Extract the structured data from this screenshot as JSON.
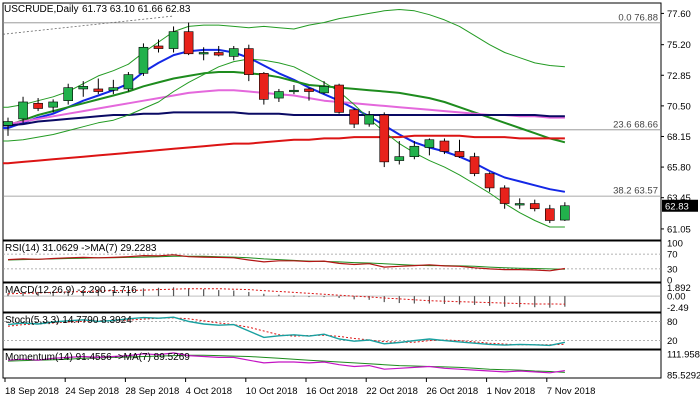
{
  "header": {
    "symbol": "USCRUDE,Daily",
    "ohlc": "61.73 63.10 61.66 62.83"
  },
  "colors": {
    "bull": "#22b14c",
    "bear": "#e8221b",
    "frame": "#000000",
    "ema_blue": "#1428e6",
    "sma_green": "#1e8c1e",
    "sma_pink": "#e468dc",
    "sma_navy": "#0a0a64",
    "sma_red": "#dc1414",
    "bb": "#239b23",
    "fib": "#8c8c8c",
    "price_tag_bg": "#000000"
  },
  "price_tag": "62.83",
  "fib_labels": [
    "0.0 76.88",
    "23.6 68.66",
    "38.2 63.57"
  ],
  "indicator_titles": {
    "rsi": "RSI(14) 31.0629  ->MA(7) 29.2283",
    "macd": "MACD(12,26,9) -2.290  -1.716",
    "stoch": "Stoch(5,3,3) 14.7790 8.3924",
    "mom": "Momentum(14) 91.4556  ->MA(7) 89.5269"
  },
  "indicator_ticks": {
    "rsi": [
      "100",
      "70",
      "30",
      "0"
    ],
    "macd": [
      "1.892",
      "0.00",
      "-2.49"
    ],
    "stoch": [
      "80",
      "20"
    ],
    "mom": [
      "111.9587",
      "85.5292"
    ]
  },
  "chart_data": {
    "type": "candlestick",
    "x_tick_labels": [
      "18 Sep 2018",
      "24 Sep 2018",
      "28 Sep 2018",
      "4 Oct 2018",
      "10 Oct 2018",
      "16 Oct 2018",
      "22 Oct 2018",
      "26 Oct 2018",
      "1 Nov 2018",
      "7 Nov 2018"
    ],
    "y_tick_labels": [
      "77.60",
      "75.20",
      "72.85",
      "70.50",
      "68.15",
      "65.80",
      "63.45",
      "61.05"
    ],
    "ylim": [
      60.2,
      78.4
    ],
    "candles": [
      {
        "o": 69.0,
        "h": 69.6,
        "l": 68.2,
        "c": 69.3
      },
      {
        "o": 69.5,
        "h": 71.2,
        "l": 69.2,
        "c": 70.8
      },
      {
        "o": 70.7,
        "h": 71.1,
        "l": 70.1,
        "c": 70.3
      },
      {
        "o": 70.4,
        "h": 71.0,
        "l": 70.0,
        "c": 70.8
      },
      {
        "o": 70.9,
        "h": 72.2,
        "l": 70.6,
        "c": 71.9
      },
      {
        "o": 71.8,
        "h": 72.4,
        "l": 71.2,
        "c": 72.0
      },
      {
        "o": 71.8,
        "h": 72.6,
        "l": 71.4,
        "c": 71.6
      },
      {
        "o": 71.7,
        "h": 72.5,
        "l": 71.4,
        "c": 71.9
      },
      {
        "o": 71.8,
        "h": 73.1,
        "l": 71.6,
        "c": 72.9
      },
      {
        "o": 73.0,
        "h": 75.3,
        "l": 72.8,
        "c": 75.0
      },
      {
        "o": 75.1,
        "h": 75.6,
        "l": 74.6,
        "c": 74.9
      },
      {
        "o": 74.9,
        "h": 76.6,
        "l": 74.6,
        "c": 76.2
      },
      {
        "o": 76.2,
        "h": 76.9,
        "l": 74.4,
        "c": 74.5
      },
      {
        "o": 74.5,
        "h": 75.0,
        "l": 74.0,
        "c": 74.6
      },
      {
        "o": 74.6,
        "h": 75.1,
        "l": 74.3,
        "c": 74.4
      },
      {
        "o": 74.3,
        "h": 75.1,
        "l": 74.0,
        "c": 74.9
      },
      {
        "o": 74.9,
        "h": 75.2,
        "l": 72.4,
        "c": 72.9
      },
      {
        "o": 73.0,
        "h": 73.1,
        "l": 70.6,
        "c": 71.0
      },
      {
        "o": 71.1,
        "h": 71.8,
        "l": 70.8,
        "c": 71.6
      },
      {
        "o": 71.6,
        "h": 72.1,
        "l": 71.4,
        "c": 71.7
      },
      {
        "o": 71.8,
        "h": 71.9,
        "l": 70.9,
        "c": 71.6
      },
      {
        "o": 71.5,
        "h": 72.4,
        "l": 71.4,
        "c": 72.0
      },
      {
        "o": 72.1,
        "h": 72.2,
        "l": 69.9,
        "c": 70.0
      },
      {
        "o": 70.2,
        "h": 70.3,
        "l": 68.8,
        "c": 69.1
      },
      {
        "o": 69.1,
        "h": 70.1,
        "l": 68.9,
        "c": 69.8
      },
      {
        "o": 69.8,
        "h": 70.0,
        "l": 65.8,
        "c": 66.2
      },
      {
        "o": 66.3,
        "h": 67.8,
        "l": 66.0,
        "c": 66.6
      },
      {
        "o": 66.6,
        "h": 67.8,
        "l": 66.4,
        "c": 67.4
      },
      {
        "o": 67.3,
        "h": 68.0,
        "l": 66.7,
        "c": 67.9
      },
      {
        "o": 67.8,
        "h": 68.0,
        "l": 66.8,
        "c": 67.0
      },
      {
        "o": 67.0,
        "h": 67.9,
        "l": 66.5,
        "c": 66.6
      },
      {
        "o": 66.6,
        "h": 66.9,
        "l": 65.1,
        "c": 65.3
      },
      {
        "o": 65.3,
        "h": 65.4,
        "l": 63.9,
        "c": 64.2
      },
      {
        "o": 64.2,
        "h": 64.4,
        "l": 62.6,
        "c": 63.0
      },
      {
        "o": 63.0,
        "h": 63.4,
        "l": 62.6,
        "c": 63.0
      },
      {
        "o": 63.0,
        "h": 63.3,
        "l": 62.4,
        "c": 62.6
      },
      {
        "o": 62.6,
        "h": 62.9,
        "l": 61.5,
        "c": 61.7
      },
      {
        "o": 61.73,
        "h": 63.1,
        "l": 61.66,
        "c": 62.83
      }
    ],
    "horizontal_levels": [
      76.88,
      68.66,
      63.57
    ],
    "overlays": [
      {
        "color": "#1428e6",
        "values": [
          68.8,
          69.2,
          69.6,
          69.9,
          70.4,
          70.9,
          71.3,
          71.7,
          72.2,
          73.1,
          73.8,
          74.4,
          74.7,
          74.8,
          74.8,
          74.6,
          74.2,
          73.6,
          73.0,
          72.5,
          71.9,
          71.4,
          70.9,
          70.3,
          69.7,
          69.0,
          68.3,
          67.7,
          67.3,
          67.0,
          66.6,
          66.1,
          65.5,
          65.0,
          64.7,
          64.4,
          64.1,
          63.9
        ]
      },
      {
        "color": "#1e8c1e",
        "values": [
          69.0,
          69.4,
          69.8,
          70.1,
          70.4,
          70.7,
          71.0,
          71.3,
          71.6,
          72.0,
          72.3,
          72.6,
          72.8,
          73.0,
          73.1,
          73.1,
          73.0,
          72.9,
          72.7,
          72.4,
          72.1,
          72.0,
          71.9,
          71.8,
          71.7,
          71.6,
          71.5,
          71.3,
          71.1,
          70.8,
          70.4,
          70.0,
          69.6,
          69.2,
          68.8,
          68.4,
          68.0,
          67.7
        ]
      },
      {
        "color": "#e468dc",
        "values": [
          69.1,
          69.3,
          69.5,
          69.7,
          69.9,
          70.1,
          70.3,
          70.5,
          70.7,
          70.9,
          71.1,
          71.3,
          71.5,
          71.6,
          71.7,
          71.7,
          71.6,
          71.5,
          71.4,
          71.3,
          71.1,
          70.9,
          70.8,
          70.7,
          70.6,
          70.5,
          70.4,
          70.3,
          70.2,
          70.1,
          70.0,
          69.9,
          69.8,
          69.8,
          69.7,
          69.7,
          69.6,
          69.6
        ]
      },
      {
        "color": "#0a0a64",
        "values": [
          69.0,
          69.1,
          69.3,
          69.4,
          69.5,
          69.6,
          69.7,
          69.8,
          69.8,
          69.9,
          69.9,
          70.0,
          70.0,
          70.0,
          70.0,
          70.0,
          69.9,
          69.9,
          69.9,
          69.8,
          69.8,
          69.8,
          69.8,
          69.8,
          69.8,
          69.8,
          69.8,
          69.8,
          69.8,
          69.8,
          69.8,
          69.8,
          69.8,
          69.8,
          69.8,
          69.8,
          69.7,
          69.7
        ]
      },
      {
        "color": "#dc1414",
        "values": [
          66.1,
          66.2,
          66.3,
          66.4,
          66.5,
          66.6,
          66.7,
          66.8,
          66.9,
          67.0,
          67.1,
          67.2,
          67.3,
          67.4,
          67.5,
          67.6,
          67.6,
          67.7,
          67.8,
          67.9,
          67.9,
          68.0,
          68.0,
          68.1,
          68.1,
          68.1,
          68.1,
          68.2,
          68.2,
          68.2,
          68.2,
          68.1,
          68.1,
          68.1,
          68.0,
          68.0,
          68.0,
          68.0
        ]
      },
      {
        "color": "#239b23",
        "values": [
          67.8,
          67.9,
          68.1,
          68.3,
          68.6,
          68.9,
          69.2,
          69.4,
          69.8,
          70.3,
          70.8,
          71.6,
          72.3,
          72.9,
          73.5,
          73.9,
          74.1,
          74.0,
          73.8,
          73.5,
          72.9,
          72.3,
          71.6,
          70.6,
          69.5,
          68.5,
          67.6,
          66.9,
          66.3,
          65.8,
          65.2,
          64.5,
          63.8,
          63.0,
          62.3,
          61.7,
          61.2,
          61.2
        ]
      },
      {
        "color": "#239b23",
        "values": [
          70.4,
          70.6,
          70.9,
          71.2,
          71.6,
          72.2,
          72.8,
          73.2,
          73.7,
          74.6,
          75.4,
          76.2,
          76.6,
          76.7,
          76.7,
          76.6,
          76.5,
          76.6,
          76.5,
          76.4,
          76.7,
          76.9,
          77.2,
          77.4,
          77.6,
          77.8,
          77.9,
          77.8,
          77.5,
          77.1,
          76.6,
          75.9,
          75.2,
          74.6,
          74.2,
          73.8,
          73.6,
          73.5
        ]
      }
    ],
    "dotted_trendline": {
      "from": [
        0,
        76.0
      ],
      "to": [
        11,
        77.4
      ]
    },
    "rsi": {
      "ylim": [
        0,
        100
      ],
      "levels": [
        70,
        30
      ],
      "rsi": [
        55,
        57,
        56,
        58,
        60,
        61,
        60,
        61,
        63,
        66,
        65,
        68,
        63,
        62,
        61,
        60,
        54,
        49,
        52,
        52,
        50,
        51,
        45,
        42,
        44,
        35,
        37,
        39,
        41,
        38,
        37,
        33,
        30,
        28,
        28,
        27,
        25,
        31
      ],
      "ma": [
        54,
        55,
        56,
        57,
        58,
        59,
        60,
        60,
        61,
        62,
        63,
        64,
        64,
        64,
        63,
        62,
        60,
        57,
        55,
        53,
        51,
        50,
        49,
        47,
        46,
        44,
        42,
        40,
        39,
        39,
        38,
        37,
        35,
        33,
        32,
        31,
        30,
        29
      ]
    },
    "macd": {
      "ylim": [
        -3,
        2.4
      ],
      "hist": [
        0.6,
        0.8,
        0.9,
        1.0,
        1.1,
        1.2,
        1.2,
        1.3,
        1.4,
        1.7,
        1.8,
        1.9,
        1.7,
        1.5,
        1.3,
        1.2,
        0.9,
        0.5,
        0.3,
        0.1,
        -0.1,
        -0.2,
        -0.4,
        -0.7,
        -0.8,
        -1.3,
        -1.5,
        -1.6,
        -1.6,
        -1.7,
        -1.8,
        -1.9,
        -2.1,
        -2.3,
        -2.4,
        -2.4,
        -2.5,
        -2.29
      ],
      "signal": [
        0.5,
        0.6,
        0.7,
        0.8,
        0.9,
        1.0,
        1.1,
        1.2,
        1.2,
        1.3,
        1.4,
        1.5,
        1.6,
        1.6,
        1.6,
        1.5,
        1.4,
        1.2,
        1.0,
        0.8,
        0.6,
        0.4,
        0.2,
        0.0,
        -0.2,
        -0.4,
        -0.6,
        -0.8,
        -1.0,
        -1.1,
        -1.2,
        -1.3,
        -1.4,
        -1.5,
        -1.6,
        -1.7,
        -1.7,
        -1.716
      ]
    },
    "stoch": {
      "ylim": [
        0,
        100
      ],
      "levels": [
        80,
        20
      ],
      "k": [
        70,
        75,
        72,
        78,
        82,
        85,
        80,
        83,
        88,
        92,
        90,
        93,
        80,
        72,
        68,
        70,
        50,
        30,
        35,
        38,
        34,
        40,
        25,
        18,
        22,
        10,
        14,
        20,
        25,
        20,
        16,
        12,
        8,
        6,
        8,
        7,
        5,
        14.8
      ],
      "d": [
        65,
        70,
        72,
        75,
        78,
        80,
        82,
        83,
        84,
        87,
        90,
        91,
        88,
        82,
        75,
        70,
        62,
        50,
        38,
        34,
        36,
        37,
        33,
        27,
        22,
        17,
        15,
        15,
        20,
        22,
        20,
        16,
        12,
        9,
        7,
        7,
        7,
        8.4
      ]
    },
    "momentum": {
      "ylim": [
        85.5,
        112
      ],
      "mom": [
        103,
        104,
        103,
        105,
        106,
        107,
        106,
        107,
        108,
        110,
        109,
        111,
        108,
        107,
        106,
        106,
        103,
        100,
        101,
        101,
        100,
        101,
        98,
        96,
        97,
        93,
        94,
        95,
        96,
        94,
        93,
        92,
        91,
        90,
        91,
        90,
        89,
        91.5
      ],
      "ma": [
        102,
        102.5,
        103,
        103.5,
        104,
        105,
        105.5,
        106,
        106.5,
        107,
        107.5,
        108,
        108.5,
        108.5,
        108,
        107.5,
        107,
        106,
        105,
        104,
        103,
        102,
        101,
        100,
        99,
        98,
        97,
        96.5,
        96,
        95.5,
        95,
        94,
        93,
        92.5,
        92,
        91,
        90.5,
        89.5
      ]
    }
  }
}
